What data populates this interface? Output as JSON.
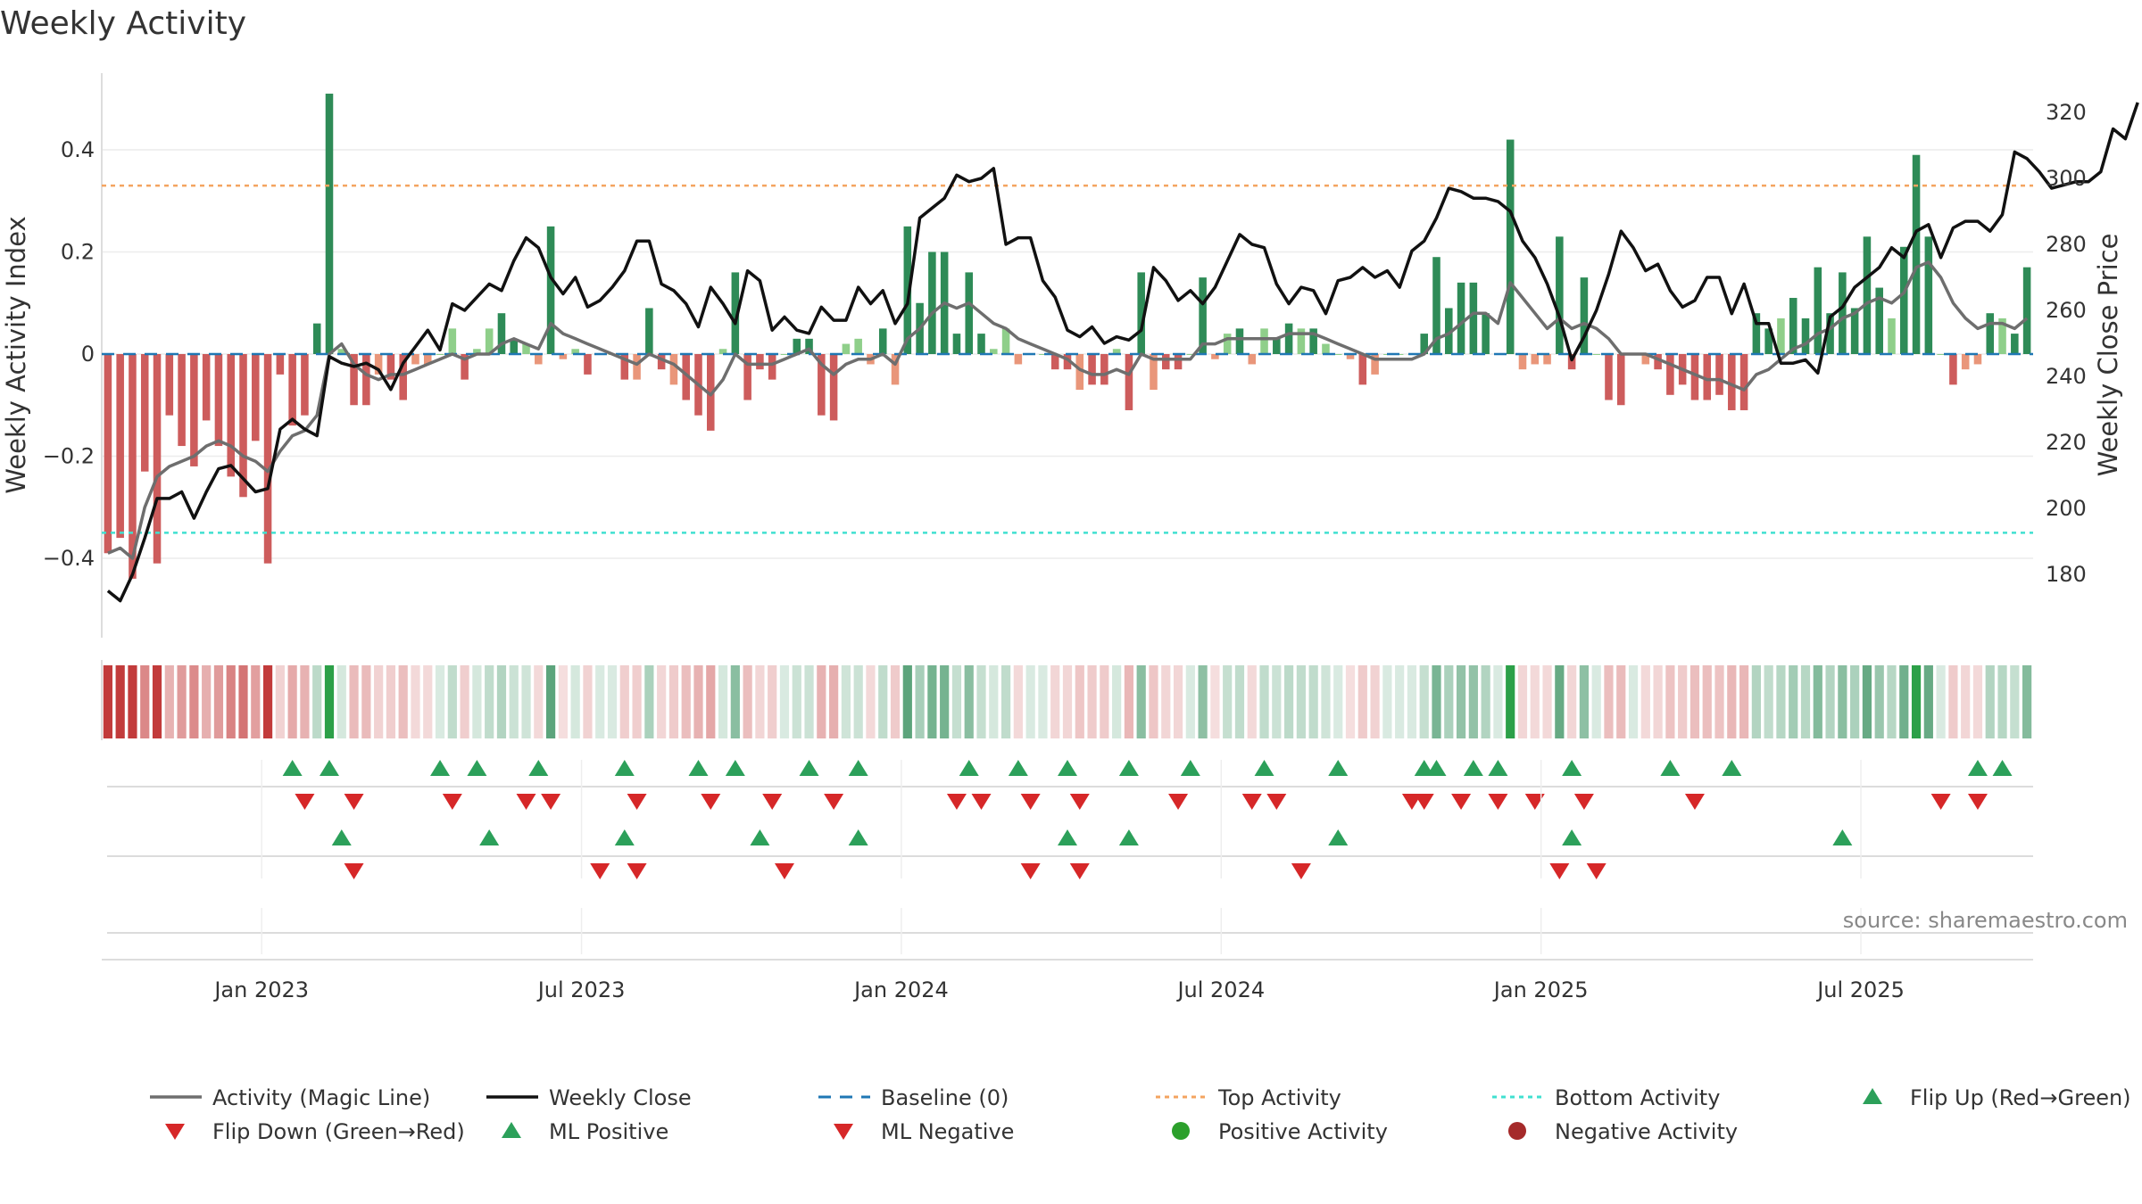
{
  "chart_data": {
    "type": "bar+line",
    "title": "Weekly Activity",
    "ylabel": "Weekly Activity Index",
    "y2label": "Weekly Close Price",
    "ylim": [
      -0.55,
      0.55
    ],
    "y2lim": [
      160,
      330
    ],
    "xlim": [
      "2022-10-01",
      "2025-10-19"
    ],
    "yticks": [
      "−0.4",
      "−0.2",
      "0",
      "0.2",
      "0.4"
    ],
    "yticks_values": [
      -0.4,
      -0.2,
      0,
      0.2,
      0.4
    ],
    "y2ticks": [
      "180",
      "200",
      "220",
      "240",
      "260",
      "280",
      "300",
      "320"
    ],
    "y2ticks_values": [
      180,
      200,
      220,
      240,
      260,
      280,
      300,
      320
    ],
    "xticks": [
      "Jan 2023",
      "Jul 2023",
      "Jan 2024",
      "Jul 2024",
      "Jan 2025",
      "Jul 2025"
    ],
    "xticks_week": [
      13,
      39,
      65,
      91,
      117,
      143
    ],
    "top_activity": 0.33,
    "bottom_activity": -0.35,
    "source": "source: sharemaestro.com",
    "colors": {
      "pos_strong": "#2e8b57",
      "pos_weak": "#8fcf8a",
      "neg_strong": "#cd5c5c",
      "neg_weak": "#e9967a",
      "magic": "#6e6e6e",
      "close": "#111111",
      "baseline": "#1f77b4",
      "top": "#f4a460",
      "bottom": "#40e0d0",
      "flip_up": "#2ca05a",
      "flip_down": "#d62728"
    },
    "series": [
      {
        "name": "Weekly Activity Index",
        "values": [
          -0.39,
          -0.36,
          -0.44,
          -0.23,
          -0.41,
          -0.12,
          -0.18,
          -0.22,
          -0.13,
          -0.18,
          -0.24,
          -0.28,
          -0.17,
          -0.41,
          -0.04,
          -0.14,
          -0.12,
          0.06,
          0.51,
          0.01,
          -0.1,
          -0.1,
          -0.04,
          -0.05,
          -0.09,
          -0.02,
          -0.02,
          0.0,
          0.05,
          -0.05,
          0.01,
          0.05,
          0.08,
          0.03,
          0.02,
          -0.02,
          0.25,
          -0.01,
          0.01,
          -0.04,
          0.0,
          0.0,
          -0.05,
          -0.05,
          0.09,
          -0.03,
          -0.06,
          -0.09,
          -0.12,
          -0.15,
          0.01,
          0.16,
          -0.09,
          -0.03,
          -0.05,
          0.0,
          0.03,
          0.03,
          -0.12,
          -0.13,
          0.02,
          0.03,
          -0.02,
          0.05,
          -0.06,
          0.25,
          0.1,
          0.2,
          0.2,
          0.04,
          0.16,
          0.04,
          0.01,
          0.05,
          -0.02,
          0.0,
          0.0,
          -0.03,
          -0.03,
          -0.07,
          -0.06,
          -0.06,
          0.01,
          -0.11,
          0.16,
          -0.07,
          -0.03,
          -0.03,
          0.0,
          0.15,
          -0.01,
          0.04,
          0.05,
          -0.02,
          0.05,
          0.03,
          0.06,
          0.05,
          0.05,
          0.02,
          0.0,
          -0.01,
          -0.06,
          -0.04,
          0.0,
          0.0,
          0.0,
          0.04,
          0.19,
          0.09,
          0.14,
          0.14,
          0.08,
          0.0,
          0.42,
          -0.03,
          -0.02,
          -0.02,
          0.23,
          -0.03,
          0.15,
          0.0,
          -0.09,
          -0.1,
          0.0,
          -0.02,
          -0.03,
          -0.08,
          -0.06,
          -0.09,
          -0.09,
          -0.08,
          -0.11,
          -0.11,
          0.08,
          0.05,
          0.07,
          0.11,
          0.07,
          0.17,
          0.08,
          0.16,
          0.09,
          0.23,
          0.13,
          0.07,
          0.21,
          0.39,
          0.23,
          0.0,
          -0.06,
          -0.03,
          -0.02,
          0.08,
          0.07,
          0.04,
          0.17
        ]
      },
      {
        "name": "Activity (Magic Line)",
        "values": [
          -0.39,
          -0.38,
          -0.4,
          -0.3,
          -0.24,
          -0.22,
          -0.21,
          -0.2,
          -0.18,
          -0.17,
          -0.18,
          -0.2,
          -0.21,
          -0.23,
          -0.19,
          -0.16,
          -0.15,
          -0.12,
          0.0,
          0.02,
          -0.02,
          -0.04,
          -0.05,
          -0.04,
          -0.04,
          -0.03,
          -0.02,
          -0.01,
          0.0,
          -0.01,
          0.0,
          0.0,
          0.02,
          0.03,
          0.02,
          0.01,
          0.06,
          0.04,
          0.03,
          0.02,
          0.01,
          0.0,
          -0.01,
          -0.02,
          0.0,
          -0.01,
          -0.02,
          -0.04,
          -0.06,
          -0.08,
          -0.05,
          0.0,
          -0.02,
          -0.02,
          -0.02,
          -0.01,
          0.0,
          0.01,
          -0.02,
          -0.04,
          -0.02,
          -0.01,
          -0.01,
          0.0,
          -0.02,
          0.03,
          0.05,
          0.08,
          0.1,
          0.09,
          0.1,
          0.08,
          0.06,
          0.05,
          0.03,
          0.02,
          0.01,
          0.0,
          -0.01,
          -0.03,
          -0.04,
          -0.04,
          -0.03,
          -0.04,
          0.0,
          -0.01,
          -0.01,
          -0.01,
          -0.01,
          0.02,
          0.02,
          0.03,
          0.03,
          0.03,
          0.03,
          0.03,
          0.04,
          0.04,
          0.04,
          0.03,
          0.02,
          0.01,
          0.0,
          -0.01,
          -0.01,
          -0.01,
          -0.01,
          0.0,
          0.03,
          0.04,
          0.06,
          0.08,
          0.08,
          0.06,
          0.14,
          0.11,
          0.08,
          0.05,
          0.07,
          0.05,
          0.06,
          0.05,
          0.03,
          0.0,
          0.0,
          0.0,
          -0.01,
          -0.02,
          -0.03,
          -0.04,
          -0.05,
          -0.05,
          -0.06,
          -0.07,
          -0.04,
          -0.03,
          -0.01,
          0.01,
          0.02,
          0.04,
          0.05,
          0.07,
          0.08,
          0.1,
          0.11,
          0.1,
          0.12,
          0.17,
          0.18,
          0.15,
          0.1,
          0.07,
          0.05,
          0.06,
          0.06,
          0.05,
          0.07
        ]
      },
      {
        "name": "Weekly Close",
        "values": [
          175,
          172,
          180,
          191,
          203,
          203,
          205,
          197,
          205,
          212,
          213,
          209,
          205,
          206,
          224,
          227,
          224,
          222,
          246,
          244,
          243,
          244,
          242,
          236,
          244,
          249,
          254,
          248,
          262,
          260,
          264,
          268,
          266,
          275,
          282,
          279,
          270,
          265,
          270,
          261,
          263,
          267,
          272,
          281,
          281,
          268,
          266,
          262,
          255,
          267,
          262,
          256,
          272,
          269,
          254,
          258,
          254,
          253,
          261,
          257,
          257,
          267,
          262,
          266,
          256,
          262,
          288,
          291,
          294,
          301,
          299,
          300,
          303,
          280,
          282,
          282,
          269,
          264,
          254,
          252,
          255,
          250,
          252,
          251,
          254,
          273,
          269,
          263,
          266,
          262,
          267,
          275,
          283,
          280,
          279,
          268,
          262,
          267,
          266,
          259,
          269,
          270,
          273,
          270,
          272,
          267,
          278,
          281,
          288,
          297,
          296,
          294,
          294,
          293,
          290,
          281,
          276,
          268,
          258,
          245,
          252,
          260,
          271,
          284,
          279,
          272,
          274,
          266,
          261,
          263,
          270,
          270,
          259,
          268,
          256,
          256,
          244,
          244,
          245,
          241,
          258,
          261,
          267,
          270,
          273,
          279,
          276,
          284,
          286,
          276,
          285,
          287,
          287,
          284,
          289,
          308,
          306,
          302,
          297,
          298,
          299,
          299,
          302,
          315,
          312,
          323
        ]
      }
    ],
    "legend": [
      {
        "label": "Activity (Magic Line)",
        "kind": "line-gray"
      },
      {
        "label": "Weekly Close",
        "kind": "line-black"
      },
      {
        "label": "Baseline (0)",
        "kind": "dash-blue"
      },
      {
        "label": "Top Activity",
        "kind": "dot-orange"
      },
      {
        "label": "Bottom Activity",
        "kind": "dot-cyan"
      },
      {
        "label": "Flip Up (Red→Green)",
        "kind": "tri-up"
      },
      {
        "label": "Flip Down (Green→Red)",
        "kind": "tri-down"
      },
      {
        "label": "ML Positive",
        "kind": "tri-up"
      },
      {
        "label": "ML Negative",
        "kind": "tri-down"
      },
      {
        "label": "Positive Activity",
        "kind": "circle-green"
      },
      {
        "label": "Negative Activity",
        "kind": "circle-red"
      }
    ],
    "flip_up_weeks": [
      15,
      18,
      27,
      30,
      35,
      42,
      48,
      51,
      57,
      61,
      70,
      74,
      78,
      83,
      88,
      94,
      100,
      107,
      108,
      111,
      113,
      119,
      127,
      132,
      152,
      154
    ],
    "flip_down_weeks": [
      16,
      20,
      28,
      34,
      36,
      43,
      49,
      54,
      59,
      69,
      71,
      75,
      79,
      87,
      93,
      95,
      106,
      107,
      110,
      113,
      116,
      120,
      129,
      149,
      152
    ],
    "ml_positive_weeks": [
      19,
      31,
      42,
      53,
      61,
      78,
      83,
      100,
      119,
      141
    ],
    "ml_negative_weeks": [
      20,
      40,
      43,
      55,
      75,
      79,
      97,
      118,
      121
    ]
  }
}
